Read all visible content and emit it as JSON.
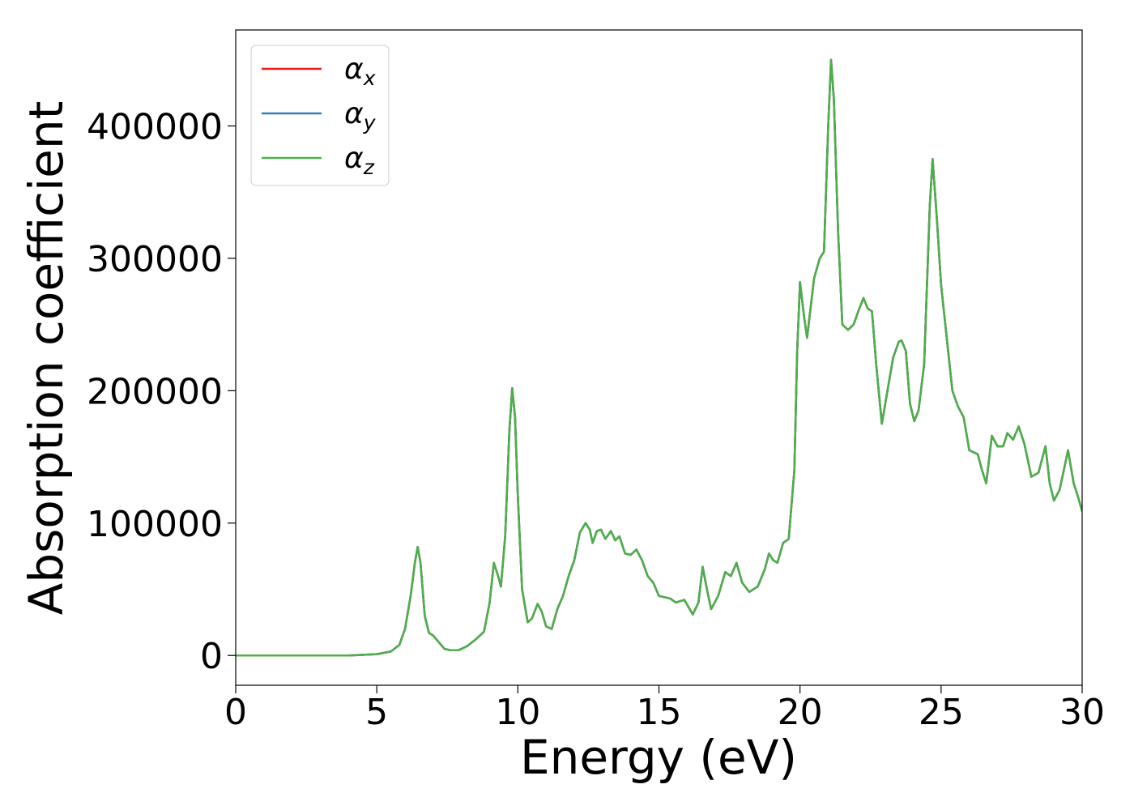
{
  "chart_data": {
    "type": "line",
    "xlabel": "Energy (eV)",
    "ylabel": "Absorption coefficient",
    "x": [
      0,
      1,
      2,
      3,
      4,
      5,
      5.5,
      5.8,
      6.0,
      6.2,
      6.35,
      6.45,
      6.55,
      6.7,
      6.85,
      7.0,
      7.2,
      7.4,
      7.6,
      7.9,
      8.2,
      8.5,
      8.8,
      9.0,
      9.15,
      9.3,
      9.4,
      9.55,
      9.7,
      9.8,
      9.9,
      10.0,
      10.15,
      10.35,
      10.5,
      10.7,
      10.85,
      11.0,
      11.2,
      11.4,
      11.6,
      11.8,
      12.0,
      12.2,
      12.4,
      12.55,
      12.65,
      12.8,
      12.95,
      13.1,
      13.3,
      13.45,
      13.6,
      13.8,
      14.0,
      14.2,
      14.4,
      14.6,
      14.8,
      15.0,
      15.2,
      15.4,
      15.6,
      15.9,
      16.2,
      16.4,
      16.55,
      16.7,
      16.85,
      17.1,
      17.35,
      17.55,
      17.75,
      17.95,
      18.2,
      18.5,
      18.75,
      18.9,
      19.05,
      19.2,
      19.4,
      19.6,
      19.8,
      19.9,
      20.0,
      20.15,
      20.25,
      20.5,
      20.7,
      20.85,
      21.0,
      21.1,
      21.2,
      21.35,
      21.5,
      21.7,
      21.9,
      22.1,
      22.25,
      22.4,
      22.55,
      22.7,
      22.9,
      23.1,
      23.3,
      23.5,
      23.6,
      23.75,
      23.9,
      24.05,
      24.2,
      24.4,
      24.6,
      24.7,
      24.85,
      25.0,
      25.2,
      25.4,
      25.6,
      25.8,
      26.0,
      26.3,
      26.45,
      26.6,
      26.8,
      27.0,
      27.2,
      27.35,
      27.55,
      27.75,
      27.95,
      28.2,
      28.45,
      28.7,
      28.85,
      29.0,
      29.2,
      29.5,
      29.7,
      29.85,
      30.0
    ],
    "series": [
      {
        "name": "αx",
        "color": "#e41a1c",
        "values": [
          0,
          0,
          0,
          0,
          0,
          1000,
          3000,
          8000,
          20000,
          45000,
          70000,
          82000,
          70000,
          30000,
          17000,
          15000,
          10000,
          5000,
          4000,
          4000,
          7000,
          12000,
          18000,
          40000,
          70000,
          60000,
          52000,
          90000,
          170000,
          202000,
          180000,
          120000,
          50000,
          25000,
          28000,
          39000,
          33000,
          22000,
          20000,
          35000,
          45000,
          60000,
          72000,
          93000,
          100000,
          95000,
          85000,
          94000,
          95000,
          88000,
          94000,
          87000,
          90000,
          77000,
          76000,
          80000,
          72000,
          60000,
          55000,
          45000,
          44000,
          43000,
          40000,
          42000,
          31000,
          40000,
          67000,
          50000,
          35000,
          45000,
          63000,
          60000,
          70000,
          55000,
          48000,
          52000,
          65000,
          77000,
          72000,
          70000,
          85000,
          88000,
          140000,
          230000,
          282000,
          255000,
          240000,
          285000,
          300000,
          305000,
          400000,
          450000,
          420000,
          320000,
          250000,
          246000,
          250000,
          262000,
          270000,
          262000,
          260000,
          220000,
          175000,
          200000,
          225000,
          237000,
          238000,
          230000,
          190000,
          177000,
          185000,
          220000,
          340000,
          375000,
          330000,
          280000,
          240000,
          200000,
          188000,
          180000,
          155000,
          152000,
          140000,
          130000,
          166000,
          158000,
          158000,
          168000,
          163000,
          173000,
          160000,
          135000,
          138000,
          158000,
          130000,
          117000,
          125000,
          155000,
          130000,
          120000,
          109000
        ]
      },
      {
        "name": "αy",
        "color": "#377eb8",
        "values": [
          0,
          0,
          0,
          0,
          0,
          1000,
          3000,
          8000,
          20000,
          45000,
          70000,
          82000,
          70000,
          30000,
          17000,
          15000,
          10000,
          5000,
          4000,
          4000,
          7000,
          12000,
          18000,
          40000,
          70000,
          60000,
          52000,
          90000,
          170000,
          202000,
          180000,
          120000,
          50000,
          25000,
          28000,
          39000,
          33000,
          22000,
          20000,
          35000,
          45000,
          60000,
          72000,
          93000,
          100000,
          95000,
          85000,
          94000,
          95000,
          88000,
          94000,
          87000,
          90000,
          77000,
          76000,
          80000,
          72000,
          60000,
          55000,
          45000,
          44000,
          43000,
          40000,
          42000,
          31000,
          40000,
          67000,
          50000,
          35000,
          45000,
          63000,
          60000,
          70000,
          55000,
          48000,
          52000,
          65000,
          77000,
          72000,
          70000,
          85000,
          88000,
          140000,
          230000,
          282000,
          255000,
          240000,
          285000,
          300000,
          305000,
          400000,
          450000,
          420000,
          320000,
          250000,
          246000,
          250000,
          262000,
          270000,
          262000,
          260000,
          220000,
          175000,
          200000,
          225000,
          237000,
          238000,
          230000,
          190000,
          177000,
          185000,
          220000,
          340000,
          375000,
          330000,
          280000,
          240000,
          200000,
          188000,
          180000,
          155000,
          152000,
          140000,
          130000,
          166000,
          158000,
          158000,
          168000,
          163000,
          173000,
          160000,
          135000,
          138000,
          158000,
          130000,
          117000,
          125000,
          155000,
          130000,
          120000,
          109000
        ]
      },
      {
        "name": "αz",
        "color": "#4daf4a",
        "values": [
          0,
          0,
          0,
          0,
          0,
          1000,
          3000,
          8000,
          20000,
          45000,
          70000,
          82000,
          70000,
          30000,
          17000,
          15000,
          10000,
          5000,
          4000,
          4000,
          7000,
          12000,
          18000,
          40000,
          70000,
          60000,
          52000,
          90000,
          170000,
          202000,
          180000,
          120000,
          50000,
          25000,
          28000,
          39000,
          33000,
          22000,
          20000,
          35000,
          45000,
          60000,
          72000,
          93000,
          100000,
          95000,
          85000,
          94000,
          95000,
          88000,
          94000,
          87000,
          90000,
          77000,
          76000,
          80000,
          72000,
          60000,
          55000,
          45000,
          44000,
          43000,
          40000,
          42000,
          31000,
          40000,
          67000,
          50000,
          35000,
          45000,
          63000,
          60000,
          70000,
          55000,
          48000,
          52000,
          65000,
          77000,
          72000,
          70000,
          85000,
          88000,
          140000,
          230000,
          282000,
          255000,
          240000,
          285000,
          300000,
          305000,
          400000,
          450000,
          420000,
          320000,
          250000,
          246000,
          250000,
          262000,
          270000,
          262000,
          260000,
          220000,
          175000,
          200000,
          225000,
          237000,
          238000,
          230000,
          190000,
          177000,
          185000,
          220000,
          340000,
          375000,
          330000,
          280000,
          240000,
          200000,
          188000,
          180000,
          155000,
          152000,
          140000,
          130000,
          166000,
          158000,
          158000,
          168000,
          163000,
          173000,
          160000,
          135000,
          138000,
          158000,
          130000,
          117000,
          125000,
          155000,
          130000,
          120000,
          109000
        ]
      }
    ],
    "xlim": [
      0,
      30
    ],
    "xticks": [
      0,
      5,
      10,
      15,
      20,
      25,
      30
    ],
    "ylim": [
      -22500,
      472500
    ],
    "yticks": [
      0,
      100000,
      200000,
      300000,
      400000
    ],
    "grid": false,
    "legend": "upper left"
  }
}
